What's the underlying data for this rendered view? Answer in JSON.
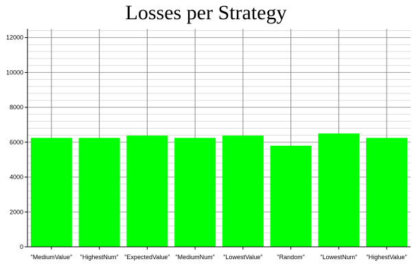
{
  "chart_data": {
    "type": "bar",
    "title": "Losses per Strategy",
    "xlabel": "",
    "ylabel": "",
    "categories": [
      "\"MediumValue\"",
      "\"HighestNum\"",
      "\"ExpectedValue\"",
      "\"MediumNum\"",
      "\"LowestValue\"",
      "\"Random\"",
      "\"LowestNum\"",
      "\"HighestValue\""
    ],
    "values": [
      6250,
      6250,
      6380,
      6250,
      6380,
      5800,
      6500,
      6250
    ],
    "ylim": [
      0,
      12500
    ],
    "yticks": [
      0,
      2000,
      4000,
      6000,
      8000,
      10000,
      12000
    ],
    "minor_step": 400,
    "grid": true,
    "bar_color": "#00ff00"
  }
}
